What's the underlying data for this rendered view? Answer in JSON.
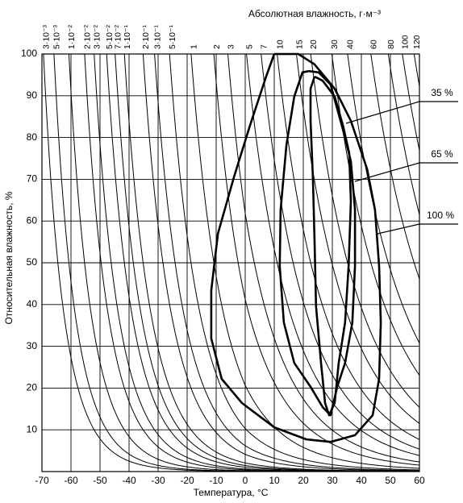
{
  "chart_data": {
    "type": "line",
    "x2_label": "Абсолютная влажность, г·м⁻³",
    "y_label": "Относительная влажность, %",
    "x_label": "Температура, °С",
    "xlim": [
      -70,
      60
    ],
    "xticks": [
      -70,
      -60,
      -50,
      -40,
      -30,
      -20,
      -10,
      0,
      10,
      20,
      30,
      40,
      50,
      60
    ],
    "ylim": [
      0,
      100
    ],
    "yticks": [
      10,
      20,
      30,
      40,
      50,
      60,
      70,
      80,
      90,
      100
    ],
    "grid": true,
    "x2ticks": [
      {
        "value": 0.003,
        "label": "3·10⁻³"
      },
      {
        "value": 0.005,
        "label": "5·10⁻³"
      },
      {
        "value": 0.01,
        "label": "1·10⁻²"
      },
      {
        "value": 0.02,
        "label": "2·10⁻²"
      },
      {
        "value": 0.03,
        "label": "3·10⁻²"
      },
      {
        "value": 0.05,
        "label": "5·10⁻²"
      },
      {
        "value": 0.07,
        "label": "7·10⁻²"
      },
      {
        "value": 0.1,
        "label": "1·10⁻¹"
      },
      {
        "value": 0.2,
        "label": "2·10⁻¹"
      },
      {
        "value": 0.3,
        "label": "3·10⁻¹"
      },
      {
        "value": 0.5,
        "label": "5·10⁻¹"
      },
      1,
      2,
      3,
      5,
      7,
      10,
      15,
      20,
      30,
      40,
      60,
      80,
      100,
      120
    ],
    "series": [
      {
        "name": "35 %",
        "color": "#000000",
        "x": [
          23.9,
          26.7,
          30.8,
          33.6,
          35.8,
          36.4,
          35.6,
          34.4,
          32.2,
          30.8,
          28.9,
          27.5,
          26.1,
          24.4,
          23.9,
          23.3,
          22.5,
          22.5,
          23.9
        ],
        "y": [
          94.6,
          93.6,
          89.8,
          83,
          76.3,
          64.7,
          49.2,
          35.7,
          26,
          16.4,
          13.5,
          16.4,
          26,
          39.6,
          55,
          70.5,
          84,
          91.7,
          94.6
        ]
      },
      {
        "name": "65 %",
        "color": "#000000",
        "x": [
          21.9,
          25.3,
          29.4,
          33.6,
          36.4,
          37.8,
          37.8,
          36.9,
          34.4,
          31.7,
          29.4,
          26.7,
          22.5,
          16.9,
          13.3,
          11.9,
          12.2,
          14.2,
          16.9,
          19.7,
          21.9
        ],
        "y": [
          95.9,
          95.6,
          92.7,
          82,
          74.3,
          62.7,
          49.2,
          35.7,
          26,
          20.3,
          13.5,
          15.4,
          20.3,
          26,
          35.7,
          49.2,
          62.7,
          78.2,
          89.8,
          95.6,
          95.9
        ]
      },
      {
        "name": "100 %",
        "color": "#000000",
        "x": [
          10,
          18.3,
          23.9,
          30.8,
          36.4,
          42,
          44.7,
          46.1,
          46.7,
          46.1,
          43.9,
          37.8,
          29.4,
          21.1,
          10,
          -1.1,
          -8.1,
          -11.7,
          -11.7,
          -9.4,
          -3.9,
          1.7,
          7.2,
          10
        ],
        "y": [
          100,
          100,
          97.5,
          91.7,
          84,
          72.4,
          62.7,
          49.2,
          35.7,
          22.2,
          13.5,
          8.7,
          7.1,
          7.7,
          10.6,
          16.4,
          22.2,
          31.9,
          43.4,
          57,
          70.5,
          83,
          94.6,
          100
        ]
      }
    ]
  }
}
